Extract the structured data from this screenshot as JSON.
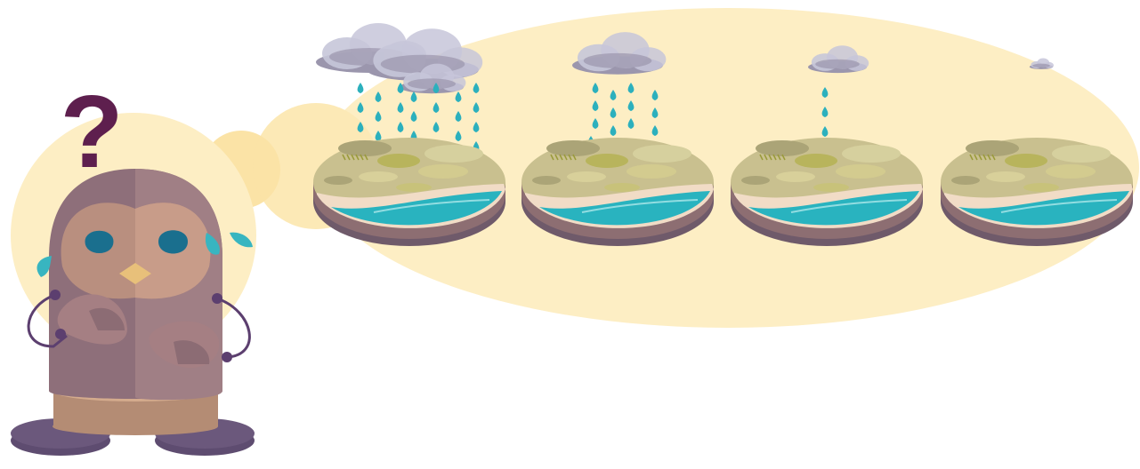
{
  "scene": {
    "character": {
      "symbol": "?",
      "colors": {
        "body": "#8e6f7a",
        "face": "#b98f7f",
        "head_top": "#7a5c84",
        "eyes": "#1a6f8e",
        "beak": "#e8c07a",
        "base": "#c49a80",
        "feet": "#6b587c",
        "question_mark": "#5e1f4e",
        "tears": "#38b5c0"
      }
    },
    "thought_bubble_color": "#fdeec4",
    "panels": [
      {
        "label": "",
        "rain_level": 1.0
      },
      {
        "label": "",
        "rain_level": 0.66
      },
      {
        "label": "",
        "rain_level": 0.25
      },
      {
        "label": "",
        "rain_level": 0.0
      }
    ],
    "colors": {
      "cloud": "#9b96ad",
      "cloud_light": "#c7c6d9",
      "rain": "#2cb0bd",
      "land": "#c9c08f",
      "hills": "#aba477",
      "grass": "#b8b45c",
      "sand": "#f1dcc6",
      "water": "#29b3bf",
      "water_dark": "#1d8f99",
      "soil": "#8d6e72",
      "soil_dark": "#6f5a6a"
    }
  }
}
